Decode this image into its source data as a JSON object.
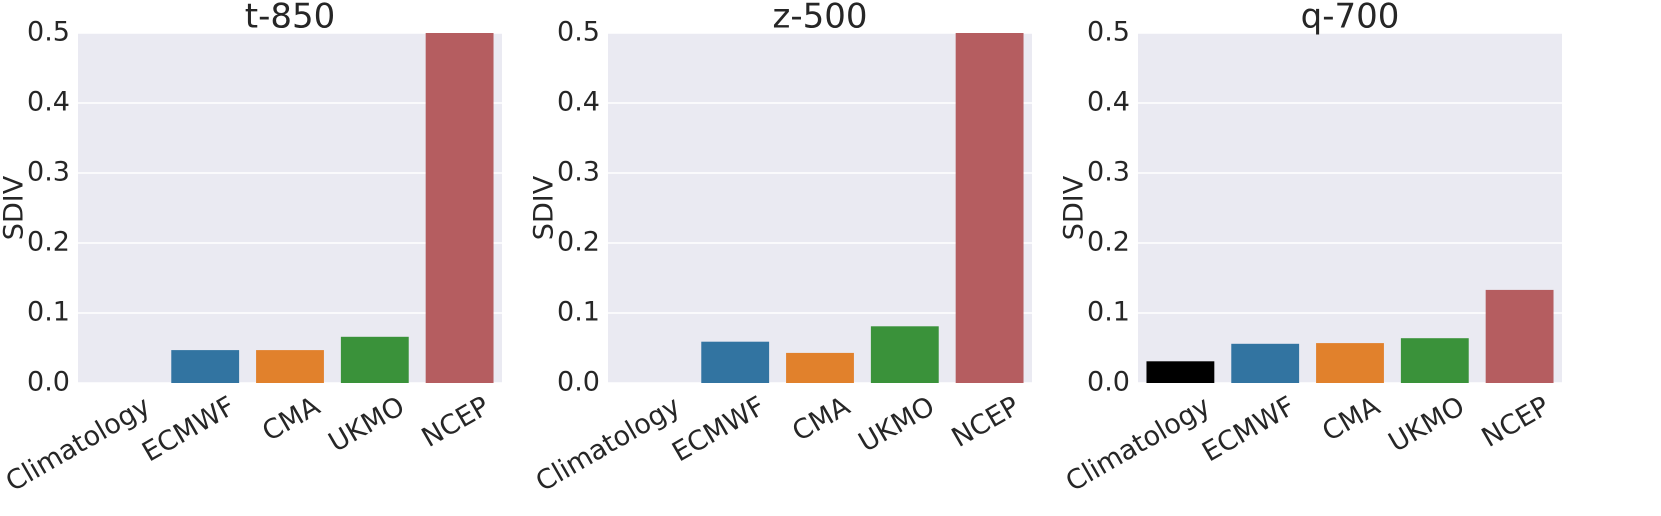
{
  "chart_data": [
    {
      "type": "bar",
      "title": "t-850",
      "y_label": "SDIV",
      "categories": [
        "Climatology",
        "ECMWF",
        "CMA",
        "UKMO",
        "NCEP"
      ],
      "values": [
        0,
        0.047,
        0.047,
        0.066,
        0.5
      ],
      "colors": [
        "#000000",
        "#3274a1",
        "#e1812c",
        "#3a923a",
        "#b55d60"
      ],
      "ylim": [
        0,
        0.5
      ],
      "yticks": [
        {
          "value": 0,
          "label": "0.0"
        },
        0.1,
        0.2,
        0.3,
        0.4,
        0.5
      ],
      "grid": true
    },
    {
      "type": "bar",
      "title": "z-500",
      "y_label": "SDIV",
      "categories": [
        "Climatology",
        "ECMWF",
        "CMA",
        "UKMO",
        "NCEP"
      ],
      "values": [
        0,
        0.059,
        0.043,
        0.081,
        0.5
      ],
      "colors": [
        "#000000",
        "#3274a1",
        "#e1812c",
        "#3a923a",
        "#b55d60"
      ],
      "ylim": [
        0,
        0.5
      ],
      "yticks": [
        {
          "value": 0,
          "label": "0.0"
        },
        0.1,
        0.2,
        0.3,
        0.4,
        0.5
      ],
      "grid": true
    },
    {
      "type": "bar",
      "title": "q-700",
      "y_label": "SDIV",
      "categories": [
        "Climatology",
        "ECMWF",
        "CMA",
        "UKMO",
        "NCEP"
      ],
      "values": [
        0.031,
        0.056,
        0.057,
        0.064,
        0.133
      ],
      "colors": [
        "#000000",
        "#3274a1",
        "#e1812c",
        "#3a923a",
        "#b55d60"
      ],
      "ylim": [
        0,
        0.5
      ],
      "yticks": [
        {
          "value": 0,
          "label": "0.0"
        },
        0.1,
        0.2,
        0.3,
        0.4,
        0.5
      ],
      "grid": true
    }
  ]
}
